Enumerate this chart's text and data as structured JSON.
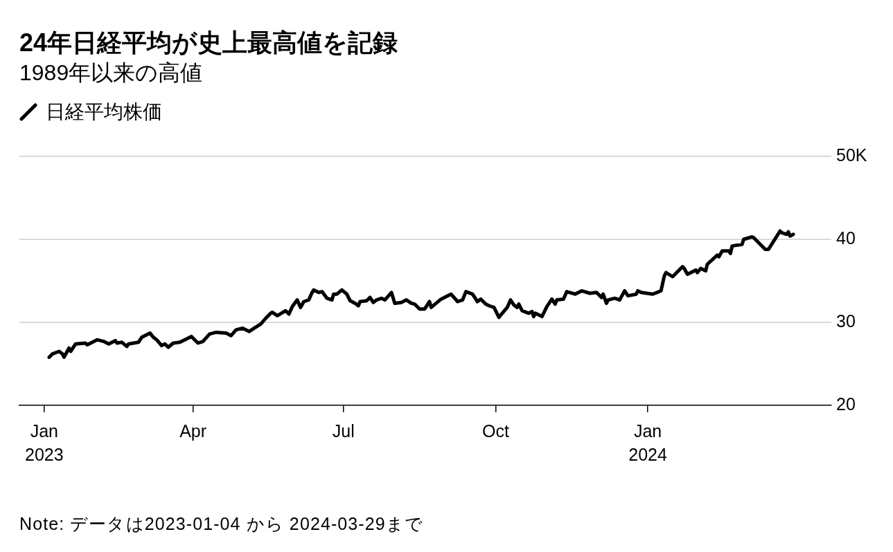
{
  "chart_data": {
    "type": "line",
    "title": "24年日経平均が史上最高値を記録",
    "subtitle": "1989年以来の高値",
    "annotations": [
      "Note: データは2023-01-04 から 2024-03-29まで"
    ],
    "x": [
      "2023-01-04",
      "2023-01-06",
      "2023-01-10",
      "2023-01-12",
      "2023-01-13",
      "2023-01-16",
      "2023-01-17",
      "2023-01-20",
      "2023-01-26",
      "2023-01-27",
      "2023-02-02",
      "2023-02-06",
      "2023-02-09",
      "2023-02-13",
      "2023-02-14",
      "2023-02-17",
      "2023-02-20",
      "2023-02-21",
      "2023-02-27",
      "2023-03-01",
      "2023-03-06",
      "2023-03-08",
      "2023-03-10",
      "2023-03-13",
      "2023-03-15",
      "2023-03-17",
      "2023-03-20",
      "2023-03-24",
      "2023-03-27",
      "2023-03-31",
      "2023-04-04",
      "2023-04-07",
      "2023-04-11",
      "2023-04-15",
      "2023-04-21",
      "2023-04-24",
      "2023-04-27",
      "2023-05-01",
      "2023-05-05",
      "2023-05-08",
      "2023-05-12",
      "2023-05-15",
      "2023-05-18",
      "2023-05-19",
      "2023-05-22",
      "2023-05-27",
      "2023-05-29",
      "2023-05-31",
      "2023-06-03",
      "2023-06-05",
      "2023-06-07",
      "2023-06-10",
      "2023-06-12",
      "2023-06-13",
      "2023-06-16",
      "2023-06-18",
      "2023-06-21",
      "2023-06-24",
      "2023-06-25",
      "2023-06-27",
      "2023-06-30",
      "2023-07-03",
      "2023-07-05",
      "2023-07-08",
      "2023-07-10",
      "2023-07-11",
      "2023-07-15",
      "2023-07-17",
      "2023-07-19",
      "2023-07-21",
      "2023-07-24",
      "2023-07-26",
      "2023-07-30",
      "2023-08-01",
      "2023-08-05",
      "2023-08-08",
      "2023-08-11",
      "2023-08-13",
      "2023-08-16",
      "2023-08-19",
      "2023-08-22",
      "2023-08-23",
      "2023-08-26",
      "2023-08-29",
      "2023-09-04",
      "2023-09-08",
      "2023-09-11",
      "2023-09-13",
      "2023-09-17",
      "2023-09-20",
      "2023-09-22",
      "2023-09-25",
      "2023-09-27",
      "2023-09-30",
      "2023-10-03",
      "2023-10-05",
      "2023-10-08",
      "2023-10-10",
      "2023-10-12",
      "2023-10-14",
      "2023-10-15",
      "2023-10-17",
      "2023-10-21",
      "2023-10-23",
      "2023-10-24",
      "2023-10-25",
      "2023-10-29",
      "2023-11-01",
      "2023-11-04",
      "2023-11-06",
      "2023-11-07",
      "2023-11-11",
      "2023-11-13",
      "2023-11-18",
      "2023-11-22",
      "2023-11-27",
      "2023-12-01",
      "2023-12-04",
      "2023-12-05",
      "2023-12-07",
      "2023-12-08",
      "2023-12-12",
      "2023-12-15",
      "2023-12-18",
      "2023-12-20",
      "2023-12-25",
      "2023-12-26",
      "2023-12-28",
      "2024-01-04",
      "2024-01-09",
      "2024-01-11",
      "2024-01-12",
      "2024-01-16",
      "2024-01-22",
      "2024-01-23",
      "2024-01-25",
      "2024-01-30",
      "2024-01-31",
      "2024-02-02",
      "2024-02-05",
      "2024-02-06",
      "2024-02-12",
      "2024-02-13",
      "2024-02-15",
      "2024-02-19",
      "2024-02-20",
      "2024-02-21",
      "2024-02-27",
      "2024-02-28",
      "2024-03-04",
      "2024-03-05",
      "2024-03-11",
      "2024-03-12",
      "2024-03-14",
      "2024-03-21",
      "2024-03-22",
      "2024-03-25",
      "2024-03-26",
      "2024-03-27",
      "2024-03-29"
    ],
    "series": [
      {
        "name": "日経平均株価",
        "color": "#000000",
        "values": [
          25.8,
          26.2,
          26.5,
          26.2,
          25.8,
          26.9,
          26.5,
          27.4,
          27.5,
          27.3,
          27.9,
          27.7,
          27.4,
          27.8,
          27.5,
          27.6,
          27.1,
          27.4,
          27.6,
          28.2,
          28.7,
          28.2,
          27.9,
          27.2,
          27.4,
          27.0,
          27.5,
          27.6,
          27.9,
          28.3,
          27.5,
          27.7,
          28.6,
          28.8,
          28.7,
          28.4,
          29.1,
          29.3,
          28.9,
          29.3,
          29.8,
          30.5,
          31.1,
          31.2,
          30.8,
          31.4,
          31.0,
          31.9,
          32.7,
          31.8,
          32.5,
          32.7,
          33.6,
          33.9,
          33.6,
          33.7,
          32.9,
          32.7,
          33.4,
          33.4,
          33.9,
          33.4,
          32.6,
          32.3,
          32.0,
          32.5,
          32.6,
          33.0,
          32.4,
          32.7,
          32.9,
          32.7,
          33.6,
          32.3,
          32.4,
          32.7,
          32.3,
          32.2,
          31.6,
          31.6,
          32.5,
          31.8,
          32.3,
          32.8,
          33.4,
          32.5,
          32.7,
          33.7,
          33.4,
          32.5,
          32.8,
          32.2,
          32.0,
          31.8,
          30.6,
          31.1,
          31.8,
          32.7,
          32.1,
          31.8,
          32.2,
          31.4,
          31.1,
          31.3,
          30.7,
          31.1,
          30.7,
          31.9,
          32.8,
          32.2,
          32.7,
          32.8,
          33.7,
          33.4,
          33.8,
          33.5,
          33.6,
          33.0,
          33.4,
          32.3,
          32.7,
          32.9,
          32.7,
          33.8,
          33.2,
          33.4,
          33.8,
          33.6,
          33.4,
          33.8,
          35.6,
          36.0,
          35.5,
          36.7,
          36.5,
          35.8,
          36.3,
          36.0,
          36.5,
          36.2,
          37.0,
          38.1,
          37.9,
          38.6,
          38.6,
          38.3,
          39.2,
          39.4,
          40.0,
          40.3,
          40.2,
          39.0,
          38.8,
          38.8,
          41.0,
          40.8,
          40.6,
          40.9,
          40.4,
          40.6
        ]
      }
    ],
    "xlim": [
      "2022-12-17",
      "2024-04-21"
    ],
    "xticks": [
      {
        "value": "2023-01-01",
        "label": "Jan\n2023"
      },
      {
        "value": "2023-04-01",
        "label": "Apr"
      },
      {
        "value": "2023-07-01",
        "label": "Jul"
      },
      {
        "value": "2023-10-01",
        "label": "Oct"
      },
      {
        "value": "2024-01-01",
        "label": "Jan\n2024"
      }
    ],
    "ylim": [
      20,
      50
    ],
    "yticks": [
      20,
      30,
      40,
      {
        "value": 50,
        "label": "50K"
      }
    ],
    "grid": "y",
    "legend": "top left",
    "marker": "none",
    "line_style": "solid"
  }
}
